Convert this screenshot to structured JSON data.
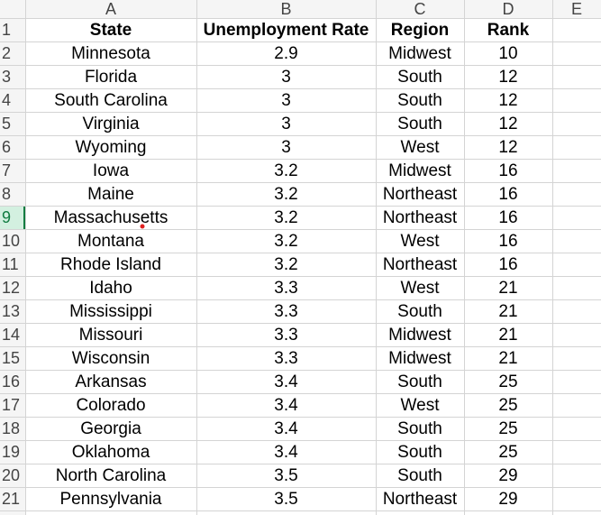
{
  "column_headers": [
    "A",
    "B",
    "C",
    "D",
    "E"
  ],
  "row_headers": [
    1,
    2,
    3,
    4,
    5,
    6,
    7,
    8,
    9,
    10,
    11,
    12,
    13,
    14,
    15,
    16,
    17,
    18,
    19,
    20,
    21
  ],
  "selected_row": 9,
  "table": {
    "header": [
      "State",
      "Unemployment Rate",
      "Region",
      "Rank"
    ],
    "rows": [
      [
        "Minnesota",
        2.9,
        "Midwest",
        10
      ],
      [
        "Florida",
        3,
        "South",
        12
      ],
      [
        "South Carolina",
        3,
        "South",
        12
      ],
      [
        "Virginia",
        3,
        "South",
        12
      ],
      [
        "Wyoming",
        3,
        "West",
        12
      ],
      [
        "Iowa",
        3.2,
        "Midwest",
        16
      ],
      [
        "Maine",
        3.2,
        "Northeast",
        16
      ],
      [
        "Massachusetts",
        3.2,
        "Northeast",
        16
      ],
      [
        "Montana",
        3.2,
        "West",
        16
      ],
      [
        "Rhode Island",
        3.2,
        "Northeast",
        16
      ],
      [
        "Idaho",
        3.3,
        "West",
        21
      ],
      [
        "Mississippi",
        3.3,
        "South",
        21
      ],
      [
        "Missouri",
        3.3,
        "Midwest",
        21
      ],
      [
        "Wisconsin",
        3.3,
        "Midwest",
        21
      ],
      [
        "Arkansas",
        3.4,
        "South",
        25
      ],
      [
        "Colorado",
        3.4,
        "West",
        25
      ],
      [
        "Georgia",
        3.4,
        "South",
        25
      ],
      [
        "Oklahoma",
        3.4,
        "South",
        25
      ],
      [
        "North Carolina",
        3.5,
        "South",
        29
      ],
      [
        "Pennsylvania",
        3.5,
        "Northeast",
        29
      ]
    ]
  }
}
